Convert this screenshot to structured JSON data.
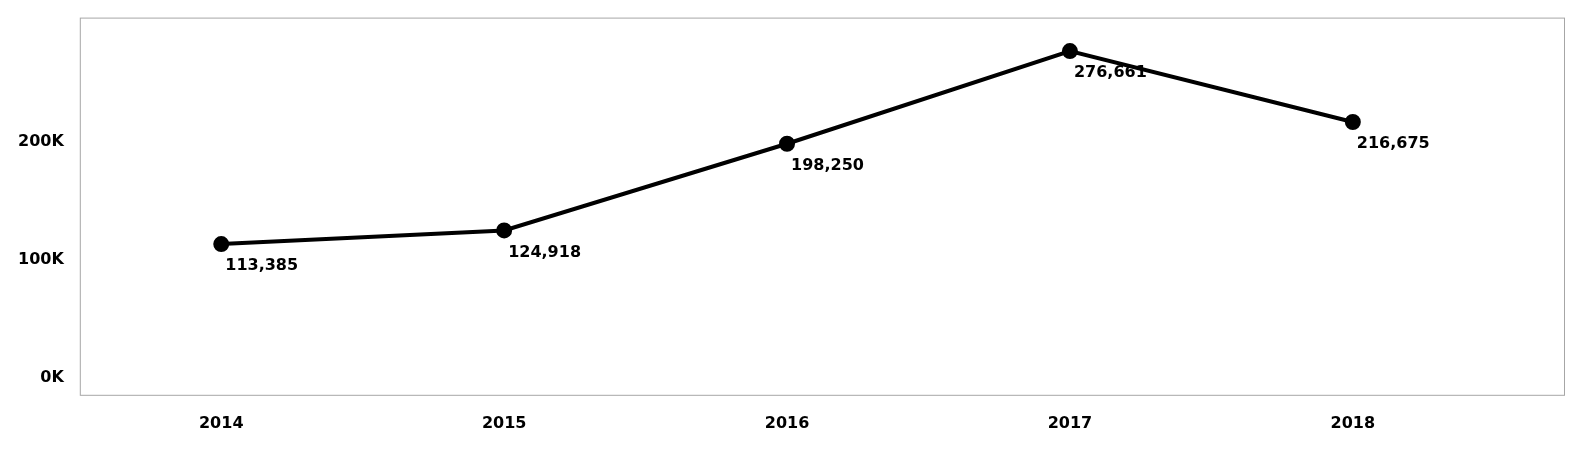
{
  "chart_data": {
    "type": "line",
    "x": [
      2014,
      2015,
      2016,
      2017,
      2018
    ],
    "values": [
      113385,
      124918,
      198250,
      276661,
      216675
    ],
    "value_labels": [
      "113,385",
      "124,918",
      "198,250",
      "276,661",
      "216,675"
    ],
    "data_labels": true,
    "color": "#000000",
    "marker": "circle",
    "xlim": [
      2013.5,
      2018.75
    ],
    "xticks": [
      2014,
      2015,
      2016,
      2017,
      2018
    ],
    "ylim": [
      -15000,
      305000
    ],
    "yticks": [
      {
        "value": 0,
        "label": "0K"
      },
      {
        "value": 100000,
        "label": "100K"
      },
      {
        "value": 200000,
        "label": "200K"
      }
    ],
    "grid": false
  }
}
